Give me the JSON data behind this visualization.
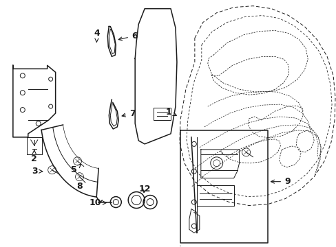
{
  "bg_color": "#ffffff",
  "line_color": "#1a1a1a",
  "font_size": 9,
  "figsize": [
    4.89,
    3.6
  ],
  "dpi": 100,
  "xlim": [
    0,
    489
  ],
  "ylim": [
    0,
    360
  ]
}
